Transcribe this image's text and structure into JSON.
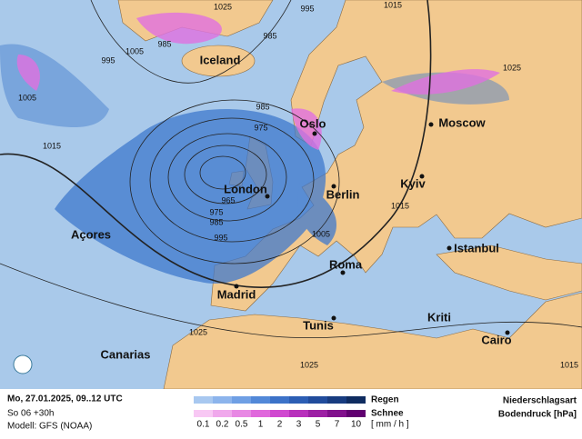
{
  "header": {
    "date": "Mo, 27.01.2025, 09..12 UTC",
    "run": "So 06 +30h",
    "model": "Modell: GFS (NOAA)"
  },
  "legend": {
    "rain_label": "Regen",
    "snow_label": "Schnee",
    "unit": "[ mm / h ]",
    "scale": [
      0.1,
      0.2,
      0.5,
      1,
      2,
      3,
      5,
      7,
      10
    ],
    "rain_colors": [
      "#a8c8f0",
      "#8cb4ec",
      "#6f9fe4",
      "#5288d8",
      "#3c72c8",
      "#2c5eb4",
      "#214c9c",
      "#183c80",
      "#0f2c60"
    ],
    "snow_colors": [
      "#f8c8f4",
      "#f0a8ec",
      "#e888e4",
      "#e068dc",
      "#d048d0",
      "#b830bc",
      "#9c20a4",
      "#80108c",
      "#600070"
    ],
    "title": "Niederschlagsart",
    "subtitle": "Bodendruck [hPa]"
  },
  "map": {
    "cities": [
      "Iceland",
      "Oslo",
      "Moscow",
      "London",
      "Berlin",
      "Kyiv",
      "Açores",
      "Istanbul",
      "Roma",
      "Madrid",
      "Tunis",
      "Kriti",
      "Canarias",
      "Cairo"
    ],
    "isobar_labels": [
      995,
      1025,
      1015,
      1005,
      985,
      985,
      995,
      1005,
      1015,
      985,
      975,
      965,
      975,
      985,
      995,
      1005,
      1015,
      1025,
      1025,
      1025,
      1015
    ]
  }
}
